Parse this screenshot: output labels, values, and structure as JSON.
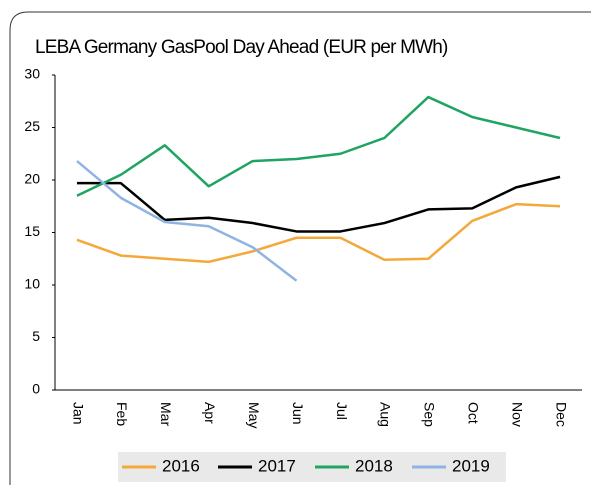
{
  "chart_data": {
    "type": "line",
    "title": "LEBA Germany GasPool Day Ahead (EUR per MWh)",
    "categories": [
      "Jan",
      "Feb",
      "Mar",
      "Apr",
      "May",
      "Jun",
      "Jul",
      "Aug",
      "Sep",
      "Oct",
      "Nov",
      "Dec"
    ],
    "series": [
      {
        "name": "2016",
        "color": "#f5a83a",
        "values": [
          14.3,
          12.8,
          12.5,
          12.2,
          13.2,
          14.5,
          14.5,
          12.4,
          12.5,
          16.1,
          17.7,
          17.5
        ]
      },
      {
        "name": "2017",
        "color": "#000000",
        "values": [
          19.7,
          19.7,
          16.2,
          16.4,
          15.9,
          15.1,
          15.1,
          15.9,
          17.2,
          17.3,
          19.3,
          20.3
        ]
      },
      {
        "name": "2018",
        "color": "#1fa463",
        "values": [
          18.5,
          20.5,
          23.3,
          19.4,
          21.8,
          22.0,
          22.5,
          24.0,
          27.9,
          26.0,
          25.0,
          24.0
        ]
      },
      {
        "name": "2019",
        "color": "#8fb4e3",
        "values": [
          21.8,
          18.3,
          16.0,
          15.6,
          13.6,
          10.4,
          null,
          null,
          null,
          null,
          null,
          null
        ]
      }
    ],
    "ylim": [
      0,
      30
    ],
    "yticks": [
      0,
      5,
      10,
      15,
      20,
      25,
      30
    ],
    "legend": "bottom"
  }
}
